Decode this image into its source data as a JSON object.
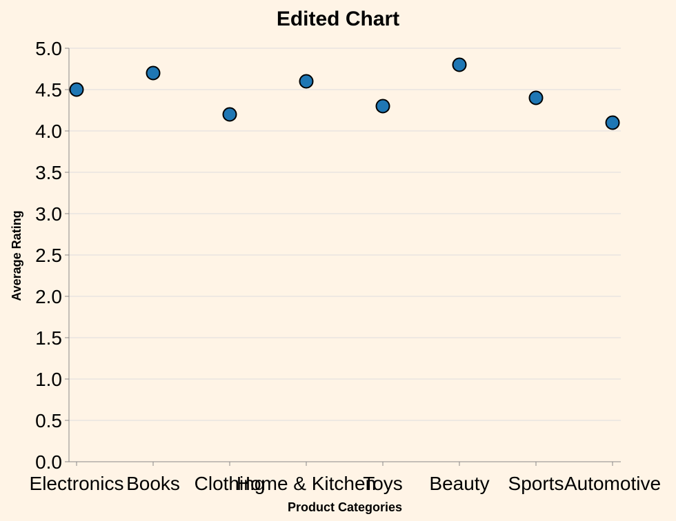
{
  "chart_data": {
    "type": "scatter",
    "title": "Edited Chart",
    "xlabel": "Product Categories",
    "ylabel": "Average Rating",
    "categories": [
      "Electronics",
      "Books",
      "Clothing",
      "Home & Kitchen",
      "Toys",
      "Beauty",
      "Sports",
      "Automotive"
    ],
    "values": [
      4.5,
      4.7,
      4.2,
      4.6,
      4.3,
      4.8,
      4.4,
      4.1
    ],
    "ylim": [
      0,
      5
    ],
    "yticks": [
      "0.0",
      "0.5",
      "1.0",
      "1.5",
      "2.0",
      "2.5",
      "3.0",
      "3.5",
      "4.0",
      "4.5",
      "5.0"
    ],
    "grid": true,
    "point_color": "#1f77b4",
    "point_stroke": "#000000",
    "background": "#fff4e6"
  }
}
